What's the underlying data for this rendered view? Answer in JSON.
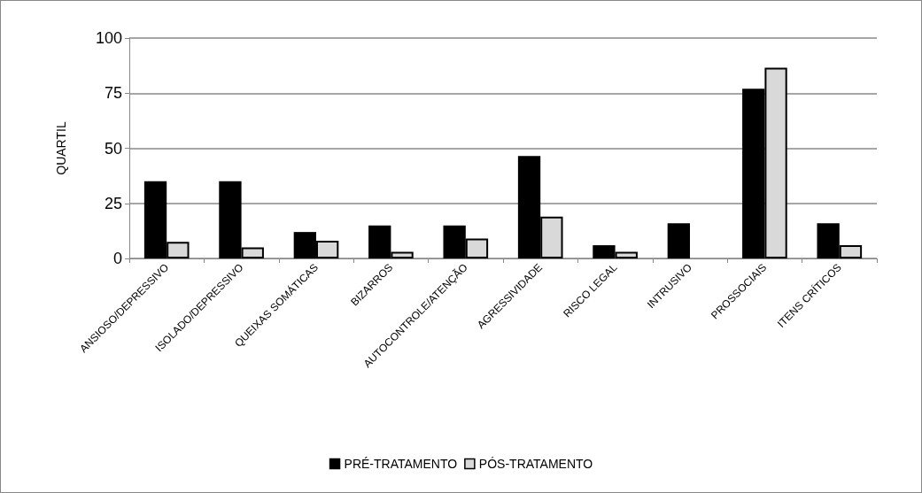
{
  "chart_data": {
    "type": "bar",
    "ylabel": "QUARTIL",
    "categories": [
      "ANSIOSO/DEPRESSIVO",
      "ISOLADO/DEPRESSIVO",
      "QUEIXAS SOMÁTICAS",
      "BIZARROS",
      "AUTOCONTROLE/ATENÇÃO",
      "AGRESSIVIDADE",
      "RISCO LEGAL",
      "INTRUSIVO",
      "PROSSOCIAIS",
      "ITENS CRÍTICOS"
    ],
    "series": [
      {
        "name": "PRÉ-TRATAMENTO",
        "color": "#000000",
        "values": [
          35,
          35,
          12,
          15,
          15,
          46.5,
          6,
          16,
          77,
          16
        ]
      },
      {
        "name": "PÓS-TRATAMENTO",
        "color": "#d9d9d9",
        "values": [
          7.5,
          5,
          8,
          3,
          9,
          19,
          3,
          null,
          86.5,
          6
        ]
      }
    ],
    "ylim": [
      0,
      100
    ],
    "yticks": [
      0,
      25,
      50,
      75,
      100
    ],
    "grid": "y",
    "legend": "bottom"
  }
}
